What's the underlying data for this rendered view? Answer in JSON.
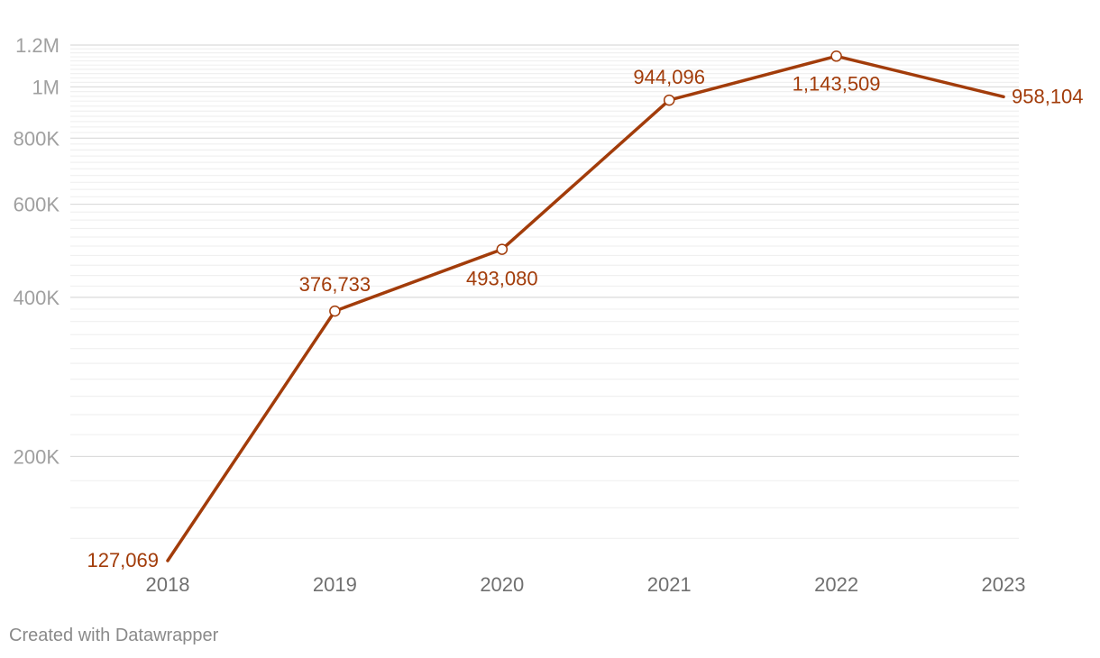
{
  "chart_data": {
    "type": "line",
    "x": [
      "2018",
      "2019",
      "2020",
      "2021",
      "2022",
      "2023"
    ],
    "series": [
      {
        "values": [
          127069,
          376733,
          493080,
          944096,
          1143509,
          958104
        ],
        "labels": [
          "127,069",
          "376,733",
          "493,080",
          "944,096",
          "1,143,509",
          "958,104"
        ],
        "color": "#a23c0a"
      }
    ],
    "y_scale": "log",
    "ylim": [
      127069,
      1200000
    ],
    "y_ticks": [
      {
        "value": 200000,
        "label": "200K"
      },
      {
        "value": 400000,
        "label": "400K"
      },
      {
        "value": 600000,
        "label": "600K"
      },
      {
        "value": 800000,
        "label": "800K"
      },
      {
        "value": 1000000,
        "label": "1M"
      },
      {
        "value": 1200000,
        "label": "1.2M"
      }
    ],
    "grid": true,
    "minor_grid": true,
    "markers": "open circles on points 2019–2022",
    "title": "",
    "xlabel": "",
    "ylabel": ""
  },
  "footer": {
    "credit": "Created with Datawrapper"
  },
  "colors": {
    "line": "#a23c0a",
    "grid": "#e6e6e6",
    "tick_text": "#a0a0a0",
    "x_text": "#707070"
  }
}
